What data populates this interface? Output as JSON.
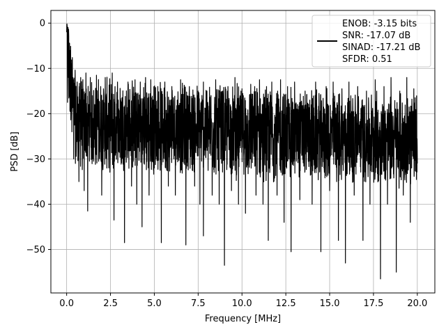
{
  "chart_data": {
    "type": "line",
    "xlabel": "Frequency [MHz]",
    "ylabel": "PSD [dB]",
    "xlim": [
      -0.9,
      21.0
    ],
    "ylim": [
      -59.6,
      2.8
    ],
    "grid": true,
    "legend_position": "top-right",
    "x_ticks": [
      0.0,
      2.5,
      5.0,
      7.5,
      10.0,
      12.5,
      15.0,
      17.5,
      20.0
    ],
    "x_tick_labels": [
      "0.0",
      "2.5",
      "5.0",
      "7.5",
      "10.0",
      "12.5",
      "15.0",
      "17.5",
      "20.0"
    ],
    "y_ticks": [
      0,
      -10,
      -20,
      -30,
      -40,
      -50
    ],
    "y_tick_labels": [
      "0",
      "−10",
      "−20",
      "−30",
      "−40",
      "−50"
    ],
    "legend": {
      "line_color": "#000000",
      "entries": [
        "ENOB: -3.15 bits",
        "SNR: -17.07 dB",
        "SINAD: -17.21 dB",
        "SFDR: 0.51"
      ]
    },
    "series": [
      {
        "color": "#000000",
        "points": [
          [
            0.0,
            -2.0
          ],
          [
            0.02,
            -0.2
          ],
          [
            0.05,
            -17.5
          ],
          [
            0.08,
            -1.0
          ],
          [
            0.1,
            -12.0
          ],
          [
            0.12,
            -3.0
          ],
          [
            0.15,
            -15.0
          ],
          [
            0.18,
            -6.0
          ],
          [
            0.22,
            -18.0
          ],
          [
            0.25,
            -9.0
          ],
          [
            0.3,
            -24.0
          ],
          [
            0.35,
            -12.0
          ],
          [
            0.4,
            -30.0
          ],
          [
            0.45,
            -14.0
          ],
          [
            0.5,
            -31.0
          ],
          [
            0.6,
            -13.0
          ],
          [
            0.7,
            -35.0
          ],
          [
            0.8,
            -12.0
          ],
          [
            0.9,
            -30.0
          ],
          [
            1.0,
            -37.0
          ],
          [
            1.1,
            -11.0
          ],
          [
            1.2,
            -41.5
          ],
          [
            1.35,
            -12.0
          ],
          [
            1.5,
            -30.0
          ],
          [
            1.7,
            -11.5
          ],
          [
            2.0,
            -38.0
          ],
          [
            2.2,
            -12.0
          ],
          [
            2.4,
            -32.0
          ],
          [
            2.6,
            -11.0
          ],
          [
            2.7,
            -43.5
          ],
          [
            2.9,
            -13.0
          ],
          [
            3.1,
            -30.0
          ],
          [
            3.3,
            -48.5
          ],
          [
            3.5,
            -13.0
          ],
          [
            3.7,
            -36.0
          ],
          [
            3.9,
            -12.5
          ],
          [
            4.0,
            -40.0
          ],
          [
            4.2,
            -13.0
          ],
          [
            4.3,
            -45.0
          ],
          [
            4.5,
            -12.0
          ],
          [
            4.7,
            -38.0
          ],
          [
            4.8,
            -12.5
          ],
          [
            5.0,
            -32.0
          ],
          [
            5.2,
            -14.0
          ],
          [
            5.4,
            -48.5
          ],
          [
            5.6,
            -13.0
          ],
          [
            5.8,
            -36.0
          ],
          [
            6.0,
            -14.0
          ],
          [
            6.2,
            -38.0
          ],
          [
            6.5,
            -12.5
          ],
          [
            6.8,
            -49.0
          ],
          [
            7.0,
            -14.0
          ],
          [
            7.3,
            -36.0
          ],
          [
            7.5,
            -15.0
          ],
          [
            7.6,
            -40.0
          ],
          [
            7.8,
            -13.0
          ],
          [
            7.8,
            -47.0
          ],
          [
            8.0,
            -15.0
          ],
          [
            8.3,
            -38.0
          ],
          [
            8.5,
            -12.5
          ],
          [
            8.7,
            -40.0
          ],
          [
            8.9,
            -15.0
          ],
          [
            9.0,
            -53.5
          ],
          [
            9.2,
            -14.0
          ],
          [
            9.4,
            -37.0
          ],
          [
            9.6,
            -12.0
          ],
          [
            9.8,
            -40.0
          ],
          [
            10.0,
            -14.5
          ],
          [
            10.2,
            -42.0
          ],
          [
            10.5,
            -13.5
          ],
          [
            10.8,
            -38.0
          ],
          [
            11.0,
            -12.5
          ],
          [
            11.2,
            -40.0
          ],
          [
            11.4,
            -14.0
          ],
          [
            11.5,
            -48.0
          ],
          [
            11.7,
            -13.0
          ],
          [
            12.0,
            -38.0
          ],
          [
            12.2,
            -12.5
          ],
          [
            12.4,
            -44.0
          ],
          [
            12.6,
            -14.0
          ],
          [
            12.8,
            -50.5
          ],
          [
            13.0,
            -13.0
          ],
          [
            13.3,
            -39.0
          ],
          [
            13.6,
            -15.0
          ],
          [
            14.0,
            -40.0
          ],
          [
            14.2,
            -13.0
          ],
          [
            14.5,
            -50.5
          ],
          [
            14.8,
            -14.0
          ],
          [
            15.0,
            -37.0
          ],
          [
            15.2,
            -13.0
          ],
          [
            15.5,
            -48.0
          ],
          [
            15.7,
            -14.5
          ],
          [
            15.9,
            -53.0
          ],
          [
            16.1,
            -13.0
          ],
          [
            16.4,
            -38.0
          ],
          [
            16.6,
            -14.0
          ],
          [
            16.9,
            -48.0
          ],
          [
            17.1,
            -15.0
          ],
          [
            17.3,
            -40.0
          ],
          [
            17.6,
            -12.5
          ],
          [
            17.9,
            -56.5
          ],
          [
            18.1,
            -14.0
          ],
          [
            18.3,
            -40.0
          ],
          [
            18.5,
            -12.0
          ],
          [
            18.8,
            -55.0
          ],
          [
            19.0,
            -15.0
          ],
          [
            19.2,
            -38.0
          ],
          [
            19.4,
            -12.0
          ],
          [
            19.6,
            -44.0
          ],
          [
            19.8,
            -14.5
          ],
          [
            20.0,
            -31.0
          ]
        ]
      }
    ]
  }
}
